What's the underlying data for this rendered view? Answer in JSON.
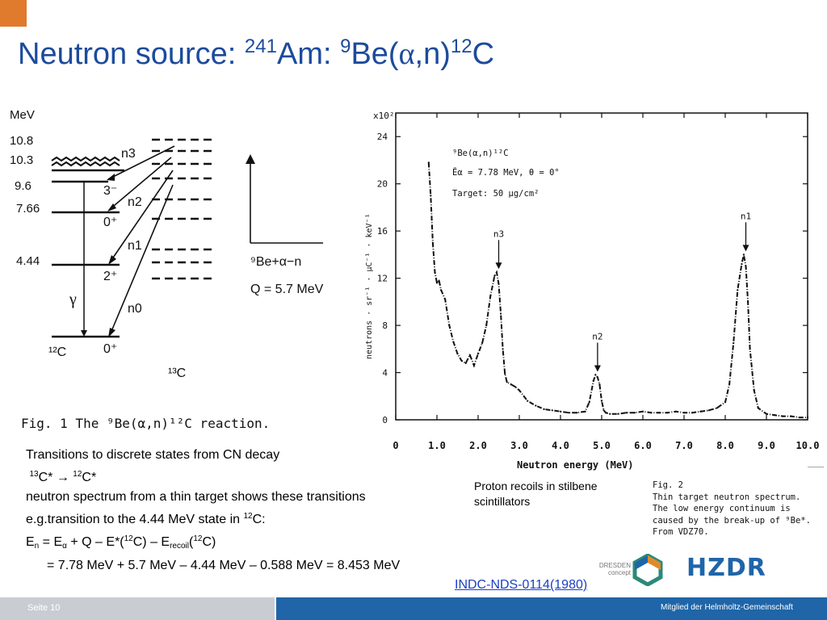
{
  "slide": {
    "title_prefix": "Neutron source: ",
    "title_am_mass": "241",
    "title_am": "Am: ",
    "title_be_mass": "9",
    "title_reaction_a": "Be(",
    "title_alpha": "α",
    "title_reaction_b": ",n)",
    "title_c_mass": "12",
    "title_c": "C"
  },
  "fig1": {
    "unit": "MeV",
    "levels": [
      "10.8",
      "10.3",
      "9.6",
      "7.66",
      "4.44"
    ],
    "spins": [
      "3⁻",
      "0⁺",
      "2⁺",
      "0⁺"
    ],
    "neutron_groups": [
      "n3",
      "n2",
      "n1",
      "n0"
    ],
    "gamma": "γ",
    "c12_label": "¹²C",
    "c13_label": "¹³C",
    "entrance": "⁹Be+α−n",
    "q_value": "Q = 5.7 MeV",
    "caption": "Fig. 1  The ⁹Be(α,n)¹²C reaction."
  },
  "fig2": {
    "y_multiplier": "x10²",
    "ylabel": "neutrons · sr⁻¹ · μC⁻¹ · keV⁻¹",
    "xlabel": "Neutron energy (MeV)",
    "legend_reaction": "⁹Be(α,n)¹²C",
    "legend_energy": "Ēα = 7.78 MeV,  θ = 0°",
    "legend_target": "Target: 50 μg/cm²",
    "peak_labels": [
      "n3",
      "n2",
      "n1"
    ],
    "caption_lines": [
      "Fig. 2",
      "Thin target neutron spectrum.",
      "The low energy continuum is",
      "caused by the break-up of ⁹Be*.",
      "From VDZ70."
    ]
  },
  "chart_data": {
    "type": "line",
    "title": "",
    "xlabel": "Neutron energy (MeV)",
    "ylabel": "neutrons · sr⁻¹ · μC⁻¹ · keV⁻¹",
    "xlim": [
      0,
      10
    ],
    "ylim": [
      0,
      26
    ],
    "x_ticks": [
      "0",
      "1.0",
      "2.0",
      "3.0",
      "4.0",
      "5.0",
      "6.0",
      "7.0",
      "8.0",
      "9.0",
      "10.0"
    ],
    "y_ticks": [
      "0",
      "4",
      "8",
      "12",
      "16",
      "20",
      "24"
    ],
    "series": [
      {
        "x": [
          0.8,
          0.85,
          0.9,
          0.95,
          1.0,
          1.05,
          1.1,
          1.2,
          1.3,
          1.4,
          1.5,
          1.6,
          1.7,
          1.8,
          1.9,
          2.0,
          2.1,
          2.2,
          2.3,
          2.4,
          2.45,
          2.5,
          2.55,
          2.6,
          2.65,
          2.7,
          2.8,
          2.9,
          3.0,
          3.2,
          3.4,
          3.6,
          3.8,
          4.0,
          4.2,
          4.4,
          4.6,
          4.7,
          4.8,
          4.85,
          4.9,
          4.95,
          5.0,
          5.05,
          5.1,
          5.2,
          5.4,
          5.6,
          5.8,
          6.0,
          6.2,
          6.4,
          6.6,
          6.8,
          7.0,
          7.2,
          7.4,
          7.6,
          7.8,
          8.0,
          8.1,
          8.2,
          8.3,
          8.4,
          8.45,
          8.5,
          8.55,
          8.6,
          8.7,
          8.8,
          9.0,
          9.2,
          9.4,
          9.6,
          9.8,
          10.0
        ],
        "y": [
          21.8,
          19,
          15,
          12.5,
          11.6,
          11.8,
          11.0,
          10.2,
          8.0,
          6.6,
          5.6,
          5.0,
          4.8,
          5.5,
          4.6,
          5.6,
          6.5,
          8.0,
          10.5,
          12.2,
          12.5,
          11.5,
          9.0,
          6.0,
          3.9,
          3.2,
          3.0,
          2.8,
          2.5,
          1.6,
          1.2,
          0.9,
          0.8,
          0.7,
          0.6,
          0.6,
          0.7,
          1.5,
          3.3,
          3.8,
          3.6,
          3.0,
          1.6,
          0.8,
          0.6,
          0.5,
          0.5,
          0.6,
          0.6,
          0.7,
          0.6,
          0.6,
          0.6,
          0.7,
          0.6,
          0.6,
          0.7,
          0.8,
          1.0,
          1.5,
          3.0,
          6.5,
          11.0,
          13.2,
          14.0,
          13.0,
          10.0,
          6.0,
          2.5,
          1.0,
          0.5,
          0.4,
          0.3,
          0.3,
          0.2,
          0.2
        ]
      }
    ],
    "annotations": [
      {
        "text": "n3",
        "x": 2.5,
        "y": 12.5
      },
      {
        "text": "n2",
        "x": 4.9,
        "y": 3.8
      },
      {
        "text": "n1",
        "x": 8.5,
        "y": 14.0
      }
    ],
    "grid": false
  },
  "body_text": {
    "line1": "Transitions to discrete states from CN decay",
    "line2_a_mass": "13",
    "line2_a": "C* ",
    "line2_arrow": "→ ",
    "line2_b_mass": "12",
    "line2_b": "C*",
    "line3": "neutron spectrum from a thin target shows  these transitions",
    "line4_a": "e.g.transition to the 4.44 MeV state in ",
    "line4_mass": "12",
    "line4_b": "C:",
    "line5_a": "E",
    "line5_sub_n": "n",
    "line5_b": " = E",
    "line5_sub_alpha": "α",
    "line5_c": " + Q – E*(",
    "line5_mass1": "12",
    "line5_d": "C) – E",
    "line5_sub_recoil": "recoil",
    "line5_e": "(",
    "line5_mass2": "12",
    "line5_f": "C)",
    "line6": "= 7.78 MeV + 5.7 MeV – 4.44 MeV – 0.588 MeV = 8.453 MeV"
  },
  "note": {
    "line1": "Proton recoils in stilbene",
    "line2": "scintillators"
  },
  "reference_link": "INDC-NDS-0114(1980)",
  "logos": {
    "dresden_line1": "DRESDEN",
    "dresden_line2": "concept",
    "hzdr": "HZDR"
  },
  "footer": {
    "page": "Seite 10",
    "member": "Mitglied der Helmholtz-Gemeinschaft",
    "color_left": "#c9cdd3",
    "color_right": "#1f65a8"
  },
  "colors": {
    "title": "#1c4b9c",
    "accent_orange": "#e07a2c",
    "link": "#1a3fc4"
  }
}
